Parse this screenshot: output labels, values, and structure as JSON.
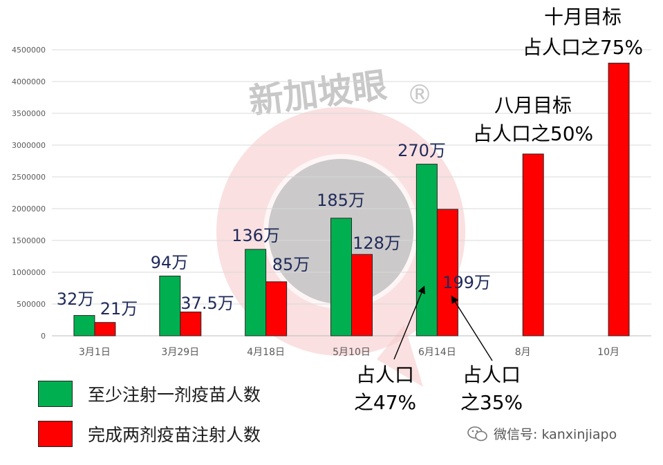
{
  "chart_data": {
    "type": "bar",
    "categories": [
      "3月1日",
      "3月29日",
      "4月18日",
      "5月10日",
      "6月14日",
      "8月",
      "10月"
    ],
    "series": [
      {
        "name": "至少注射一剂疫苗人数",
        "color": "#00b050",
        "values": [
          320000,
          940000,
          1360000,
          1850000,
          2700000,
          null,
          null
        ],
        "labels": [
          "32万",
          "94万",
          "136万",
          "185万",
          "270万",
          "",
          ""
        ]
      },
      {
        "name": "完成两剂疫苗注射人数",
        "color": "#ff0000",
        "values": [
          210000,
          375000,
          850000,
          1280000,
          1990000,
          2860000,
          4290000
        ],
        "labels": [
          "21万",
          "37.5万",
          "85万",
          "128万",
          "199万",
          "",
          ""
        ]
      }
    ],
    "ylim": [
      0,
      4500000
    ],
    "yticks": [
      "0",
      "500000",
      "1000000",
      "1500000",
      "2000000",
      "2500000",
      "3000000",
      "3500000",
      "4000000",
      "4500000"
    ],
    "grid": true,
    "legend_position": "bottom-left",
    "annotations": {
      "october_target": [
        "十月目标",
        "占人口之75%"
      ],
      "august_target": [
        "八月目标",
        "占人口之50%"
      ],
      "first_dose_share": [
        "占人口",
        "之47%"
      ],
      "second_dose_share": [
        "占人口",
        "之35%"
      ]
    }
  },
  "watermark": {
    "text": "新加坡眼",
    "mark": "®"
  },
  "footer": {
    "wechat_label": "微信号: kanxinjiapo"
  }
}
